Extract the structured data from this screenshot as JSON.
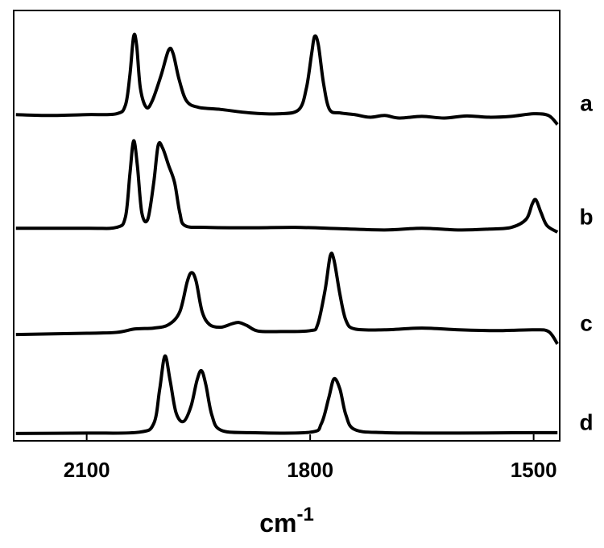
{
  "chart_data": {
    "type": "line",
    "x_label": {
      "base": "cm",
      "superscript": "-1"
    },
    "xlim": [
      2198,
      1465
    ],
    "ylim": [
      0,
      100
    ],
    "xticks": [
      2100,
      1800,
      1500
    ],
    "series": [
      {
        "name": "a",
        "color": "#000000",
        "x": [
          2195,
          2150,
          2100,
          2060,
          2048,
          2042,
          2037,
          2033,
          2028,
          2020,
          2012,
          2000,
          1990,
          1984,
          1976,
          1966,
          1950,
          1920,
          1880,
          1840,
          1815,
          1805,
          1798,
          1794,
          1789,
          1782,
          1774,
          1760,
          1740,
          1720,
          1700,
          1680,
          1650,
          1620,
          1590,
          1560,
          1530,
          1500,
          1480,
          1468
        ],
        "values": [
          75.8,
          75.6,
          75.8,
          76,
          78,
          85,
          94,
          92,
          82,
          77.5,
          79,
          85,
          90.8,
          90,
          84,
          79,
          77.5,
          77,
          76.2,
          76,
          77,
          82,
          90,
          94,
          92,
          83,
          77,
          76.2,
          75.8,
          75.2,
          75.6,
          75,
          75.4,
          75,
          75.5,
          75.2,
          75.4,
          76,
          75.6,
          73.5
        ]
      },
      {
        "name": "b",
        "color": "#000000",
        "x": [
          2195,
          2100,
          2060,
          2048,
          2042,
          2037,
          2032,
          2026,
          2018,
          2010,
          2004,
          1998,
          1990,
          1982,
          1975,
          1968,
          1940,
          1880,
          1820,
          1760,
          1700,
          1650,
          1600,
          1560,
          1530,
          1510,
          1502,
          1497,
          1490,
          1482,
          1468
        ],
        "values": [
          49.4,
          49.4,
          49.6,
          52,
          62,
          69.7,
          64,
          53,
          51.5,
          60,
          68.7,
          68,
          64,
          60,
          53,
          50,
          49.6,
          49.5,
          49.6,
          49.3,
          49,
          49.4,
          49,
          49.2,
          49.6,
          51.5,
          55,
          56,
          53,
          50,
          48.5
        ]
      },
      {
        "name": "c",
        "color": "#000000",
        "x": [
          2195,
          2100,
          2060,
          2035,
          2010,
          1990,
          1975,
          1965,
          1959,
          1953,
          1945,
          1935,
          1920,
          1905,
          1896,
          1885,
          1870,
          1840,
          1800,
          1790,
          1780,
          1773,
          1768,
          1760,
          1752,
          1740,
          1700,
          1650,
          1600,
          1550,
          1500,
          1480,
          1468
        ],
        "values": [
          24.7,
          25,
          25.2,
          26,
          26.2,
          27,
          30,
          37,
          39.1,
          37,
          30,
          27,
          26.4,
          27.2,
          27.5,
          26.8,
          25.5,
          25.4,
          25.6,
          27,
          35,
          43,
          42,
          34,
          28,
          26,
          25.8,
          26.2,
          25.8,
          25.6,
          25.8,
          25.4,
          22.5
        ]
      },
      {
        "name": "d",
        "color": "#000000",
        "x": [
          2195,
          2100,
          2030,
          2010,
          2002,
          1995,
          1988,
          1980,
          1970,
          1960,
          1952,
          1946,
          1940,
          1932,
          1920,
          1880,
          1800,
          1785,
          1775,
          1768,
          1760,
          1752,
          1740,
          1700,
          1600,
          1500,
          1468
        ],
        "values": [
          1.7,
          1.8,
          2,
          4,
          12,
          19.7,
          14,
          6.5,
          4.5,
          8,
          14,
          16.3,
          13,
          6,
          2.5,
          1.9,
          2,
          4,
          10,
          14.4,
          12,
          6,
          2.6,
          1.9,
          1.8,
          1.9,
          1.9
        ]
      }
    ]
  }
}
